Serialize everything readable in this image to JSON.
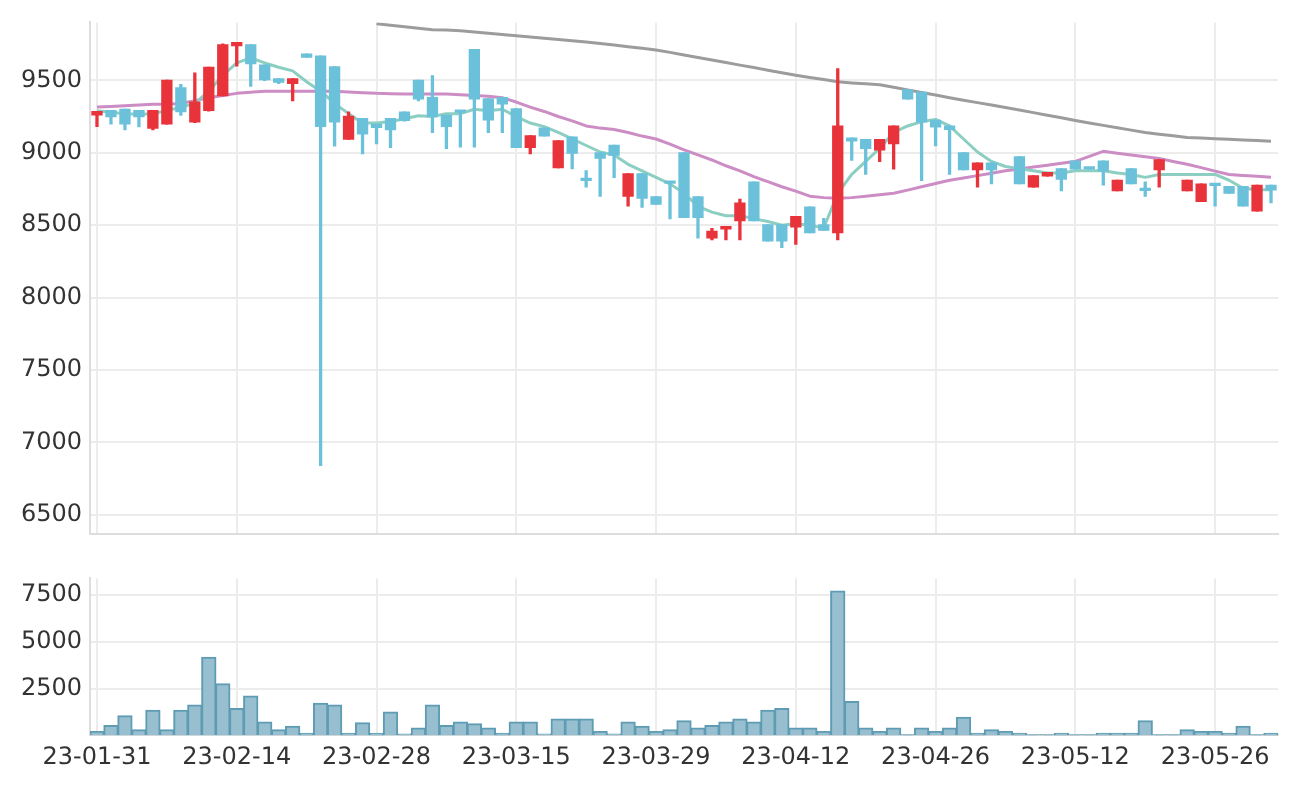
{
  "chart_data": [
    {
      "type": "candlestick",
      "categories": [
        null,
        null,
        null,
        null,
        null,
        null,
        null,
        null,
        null,
        null,
        null,
        null,
        null,
        null,
        null,
        null,
        null,
        null,
        null,
        null,
        null,
        null,
        null,
        null,
        null,
        null,
        null,
        null,
        null,
        null,
        null,
        null,
        null,
        null,
        null,
        null,
        null,
        null,
        null,
        null,
        null,
        null,
        null,
        null,
        null,
        null,
        null,
        null,
        null,
        null,
        null,
        null,
        null,
        null,
        null,
        null,
        null,
        null,
        null,
        null,
        null,
        null,
        null,
        null,
        null,
        null,
        null,
        null,
        null,
        null,
        null,
        null,
        null,
        null,
        null,
        null,
        null,
        null,
        null,
        null,
        null,
        null,
        null,
        null,
        null
      ],
      "ohlc": [
        [
          9262,
          9284,
          9183,
          9284
        ],
        [
          9290,
          9290,
          9200,
          9250
        ],
        [
          9300,
          9300,
          9160,
          9200
        ],
        [
          9290,
          9290,
          9180,
          9250
        ],
        [
          9170,
          9290,
          9160,
          9290
        ],
        [
          9200,
          9500,
          9200,
          9500
        ],
        [
          9447,
          9470,
          9260,
          9284
        ],
        [
          9214,
          9550,
          9210,
          9350
        ],
        [
          9293,
          9590,
          9290,
          9590
        ],
        [
          9395,
          9750,
          9395,
          9745
        ],
        [
          9740,
          9760,
          9600,
          9760
        ],
        [
          9745,
          9745,
          9460,
          9615
        ],
        [
          9605,
          9605,
          9500,
          9505
        ],
        [
          9510,
          9510,
          9480,
          9487
        ],
        [
          9480,
          9510,
          9360,
          9510
        ],
        [
          9680,
          9680,
          9660,
          9660
        ],
        [
          9667,
          9667,
          6842,
          9183
        ],
        [
          9592,
          9592,
          9047,
          9214
        ],
        [
          9095,
          9280,
          9095,
          9250
        ],
        [
          9236,
          9236,
          8994,
          9130
        ],
        [
          9196,
          9196,
          9064,
          9175
        ],
        [
          9236,
          9236,
          9038,
          9160
        ],
        [
          9280,
          9280,
          9220,
          9223
        ],
        [
          9500,
          9500,
          9360,
          9372
        ],
        [
          9381,
          9530,
          9140,
          9250
        ],
        [
          9258,
          9258,
          9030,
          9183
        ],
        [
          9285,
          9285,
          9040,
          9280
        ],
        [
          9711,
          9711,
          9040,
          9372
        ],
        [
          9372,
          9372,
          9140,
          9227
        ],
        [
          9381,
          9381,
          9140,
          9337
        ],
        [
          9302,
          9302,
          9038,
          9038
        ],
        [
          9038,
          9117,
          8994,
          9117
        ],
        [
          9170,
          9170,
          9117,
          9117
        ],
        [
          8897,
          9082,
          8897,
          9082
        ],
        [
          9108,
          9108,
          8890,
          8998
        ],
        [
          8810,
          8875,
          8765,
          8809
        ],
        [
          8998,
          8998,
          8700,
          8963
        ],
        [
          9050,
          9050,
          8830,
          8984
        ],
        [
          8700,
          8853,
          8633,
          8853
        ],
        [
          8853,
          8853,
          8624,
          8686
        ],
        [
          8695,
          8695,
          8646,
          8646
        ],
        [
          8800,
          8800,
          8545,
          8790
        ],
        [
          8998,
          8998,
          8554,
          8554
        ],
        [
          8695,
          8695,
          8413,
          8554
        ],
        [
          8413,
          8475,
          8400,
          8457
        ],
        [
          8475,
          8484,
          8400,
          8484
        ],
        [
          8532,
          8677,
          8400,
          8651
        ],
        [
          8796,
          8796,
          8532,
          8532
        ],
        [
          8501,
          8501,
          8391,
          8391
        ],
        [
          8501,
          8501,
          8347,
          8391
        ],
        [
          8488,
          8558,
          8369,
          8558
        ],
        [
          8624,
          8624,
          8448,
          8448
        ],
        [
          8501,
          8545,
          8466,
          8466
        ],
        [
          8448,
          9579,
          8400,
          9183
        ],
        [
          9100,
          9100,
          8950,
          9082
        ],
        [
          9091,
          9091,
          8853,
          9030
        ],
        [
          9020,
          9091,
          8940,
          9091
        ],
        [
          9064,
          9183,
          8888,
          9183
        ],
        [
          9434,
          9434,
          9372,
          9372
        ],
        [
          9416,
          9416,
          8809,
          9214
        ],
        [
          9223,
          9223,
          9050,
          9179
        ],
        [
          9183,
          9183,
          8853,
          9161
        ],
        [
          8998,
          8998,
          8884,
          8884
        ],
        [
          8884,
          8928,
          8765,
          8928
        ],
        [
          8928,
          8928,
          8787,
          8884
        ],
        null,
        [
          8972,
          8972,
          8787,
          8787
        ],
        [
          8765,
          8840,
          8765,
          8840
        ],
        [
          8840,
          8862,
          8840,
          8862
        ],
        [
          8888,
          8888,
          8739,
          8818
        ],
        [
          8941,
          8941,
          8888,
          8888
        ],
        [
          8897,
          8897,
          8888,
          8888
        ],
        [
          8941,
          8941,
          8778,
          8875
        ],
        [
          8739,
          8809,
          8739,
          8809
        ],
        [
          8888,
          8888,
          8787,
          8787
        ],
        [
          8745,
          8796,
          8700,
          8740
        ],
        [
          8884,
          8950,
          8765,
          8950
        ],
        null,
        [
          8739,
          8809,
          8739,
          8809
        ],
        [
          8664,
          8783,
          8664,
          8783
        ],
        [
          8783,
          8783,
          8633,
          8774
        ],
        [
          8765,
          8765,
          8721,
          8721
        ],
        [
          8765,
          8765,
          8633,
          8633
        ],
        [
          8598,
          8774,
          8598,
          8774
        ],
        [
          8774,
          8774,
          8655,
          8743
        ]
      ],
      "colors": [
        "#e8333b",
        "#6cc1da",
        "#6cc1da",
        "#6cc1da",
        "#e8333b",
        "#e8333b",
        "#6cc1da",
        "#e8333b",
        "#e8333b",
        "#e8333b",
        "#e8333b",
        "#6cc1da",
        "#6cc1da",
        "#6cc1da",
        "#e8333b",
        "#6cc1da",
        "#6cc1da",
        "#6cc1da",
        "#e8333b",
        "#6cc1da",
        "#6cc1da",
        "#6cc1da",
        "#6cc1da",
        "#6cc1da",
        "#6cc1da",
        "#6cc1da",
        "#6cc1da",
        "#6cc1da",
        "#6cc1da",
        "#6cc1da",
        "#6cc1da",
        "#e8333b",
        "#6cc1da",
        "#e8333b",
        "#6cc1da",
        "#6cc1da",
        "#6cc1da",
        "#6cc1da",
        "#e8333b",
        "#6cc1da",
        "#6cc1da",
        "#6cc1da",
        "#6cc1da",
        "#6cc1da",
        "#e8333b",
        "#e8333b",
        "#e8333b",
        "#6cc1da",
        "#6cc1da",
        "#6cc1da",
        "#e8333b",
        "#6cc1da",
        "#6cc1da",
        "#e8333b",
        "#6cc1da",
        "#6cc1da",
        "#e8333b",
        "#e8333b",
        "#6cc1da",
        "#6cc1da",
        "#6cc1da",
        "#6cc1da",
        "#6cc1da",
        "#e8333b",
        "#6cc1da",
        null,
        "#6cc1da",
        "#e8333b",
        "#e8333b",
        "#6cc1da",
        "#6cc1da",
        "#6cc1da",
        "#6cc1da",
        "#e8333b",
        "#6cc1da",
        "#6cc1da",
        "#e8333b",
        null,
        "#e8333b",
        "#e8333b",
        "#6cc1da",
        "#6cc1da",
        "#6cc1da",
        "#e8333b",
        "#6cc1da"
      ],
      "series": [
        {
          "type": "line",
          "color": "#8ccfc2",
          "values": [
            9290,
            9280,
            9270,
            9265,
            9270,
            9290,
            9315,
            9340,
            9425,
            9535,
            9620,
            9655,
            9620,
            9590,
            9565,
            9490,
            9425,
            9340,
            9270,
            9205,
            9205,
            9215,
            9235,
            9255,
            9250,
            9270,
            9270,
            9300,
            9290,
            9300,
            9250,
            9205,
            9180,
            9140,
            9095,
            9050,
            9005,
            8985,
            8920,
            8875,
            8830,
            8785,
            8720,
            8630,
            8590,
            8565,
            8565,
            8545,
            8525,
            8500,
            8510,
            8500,
            8480,
            8720,
            8850,
            8940,
            9030,
            9140,
            9185,
            9215,
            9230,
            9185,
            9095,
            9005,
            8940,
            8905,
            8890,
            8875,
            8860,
            8860,
            8875,
            8875,
            8875,
            8860,
            8850,
            8830,
            8850,
            8850,
            8850,
            8850,
            8850,
            8810,
            8755,
            8745,
            8745
          ]
        },
        {
          "type": "line",
          "color": "#cc8cc4",
          "values": [
            9315,
            9320,
            9325,
            9330,
            9335,
            9335,
            9340,
            9360,
            9380,
            9395,
            9410,
            9418,
            9425,
            9425,
            9425,
            9425,
            9425,
            9425,
            9420,
            9415,
            9410,
            9408,
            9405,
            9405,
            9405,
            9405,
            9400,
            9395,
            9390,
            9380,
            9350,
            9315,
            9285,
            9250,
            9220,
            9185,
            9170,
            9160,
            9140,
            9115,
            9095,
            9060,
            9020,
            8985,
            8950,
            8910,
            8875,
            8835,
            8800,
            8765,
            8735,
            8700,
            8690,
            8685,
            8690,
            8700,
            8710,
            8720,
            8742,
            8765,
            8788,
            8810,
            8826,
            8842,
            8858,
            8875,
            8888,
            8901,
            8914,
            8927,
            8940,
            8975,
            9010,
            8997,
            8985,
            8972,
            8960,
            8940,
            8920,
            8897,
            8873,
            8850,
            8843,
            8837,
            8830
          ]
        },
        {
          "type": "line",
          "color": "#9c9c9c",
          "values": [
            null,
            null,
            null,
            null,
            null,
            null,
            null,
            null,
            null,
            null,
            null,
            null,
            null,
            null,
            null,
            null,
            null,
            null,
            null,
            null,
            9890,
            9880,
            9870,
            9860,
            9850,
            9847,
            9843,
            9834,
            9825,
            9817,
            9808,
            9800,
            9791,
            9782,
            9773,
            9764,
            9755,
            9744,
            9732,
            9721,
            9710,
            9693,
            9675,
            9658,
            9640,
            9623,
            9605,
            9588,
            9570,
            9553,
            9535,
            9520,
            9505,
            9490,
            9482,
            9476,
            9470,
            9452,
            9434,
            9416,
            9398,
            9380,
            9363,
            9346,
            9329,
            9312,
            9295,
            9277,
            9259,
            9241,
            9223,
            9205,
            9189,
            9172,
            9156,
            9140,
            9128,
            9117,
            9105,
            9101,
            9097,
            9093,
            9088,
            9084,
            9080
          ]
        }
      ],
      "ylim": [
        6370,
        9900
      ],
      "yticks": [
        6500,
        7000,
        7500,
        8000,
        8500,
        9000,
        9500
      ],
      "tick_labels": "y",
      "grid": true
    },
    {
      "type": "bar",
      "categories": [
        "23-01-31",
        null,
        null,
        null,
        null,
        null,
        null,
        null,
        null,
        null,
        "23-02-14",
        null,
        null,
        null,
        null,
        null,
        null,
        null,
        null,
        null,
        "23-02-28",
        null,
        null,
        null,
        null,
        null,
        null,
        null,
        null,
        null,
        "23-03-15",
        null,
        null,
        null,
        null,
        null,
        null,
        null,
        null,
        null,
        "23-03-29",
        null,
        null,
        null,
        null,
        null,
        null,
        null,
        null,
        null,
        "23-04-12",
        null,
        null,
        null,
        null,
        null,
        null,
        null,
        null,
        null,
        "23-04-26",
        null,
        null,
        null,
        null,
        null,
        null,
        null,
        null,
        null,
        "23-05-12",
        null,
        null,
        null,
        null,
        null,
        null,
        null,
        null,
        null,
        "23-05-26",
        null,
        null,
        null,
        null
      ],
      "values": [
        190,
        505,
        1040,
        285,
        1330,
        285,
        1330,
        1610,
        4170,
        2750,
        1420,
        2085,
        695,
        285,
        475,
        95,
        1705,
        1610,
        95,
        665,
        95,
        1230,
        50,
        380,
        1610,
        505,
        695,
        600,
        380,
        95,
        695,
        695,
        50,
        855,
        855,
        855,
        190,
        50,
        695,
        475,
        190,
        285,
        760,
        380,
        505,
        695,
        855,
        695,
        1330,
        1420,
        380,
        380,
        190,
        7710,
        1800,
        380,
        190,
        380,
        20,
        380,
        190,
        380,
        950,
        95,
        285,
        190,
        95,
        20,
        20,
        95,
        20,
        20,
        95,
        95,
        95,
        760,
        20,
        20,
        285,
        190,
        190,
        95,
        475,
        20,
        95
      ],
      "color": "#97bfcf",
      "ylim": [
        0,
        8400
      ],
      "yticks": [
        2500,
        5000,
        7500
      ],
      "grid": true
    }
  ]
}
